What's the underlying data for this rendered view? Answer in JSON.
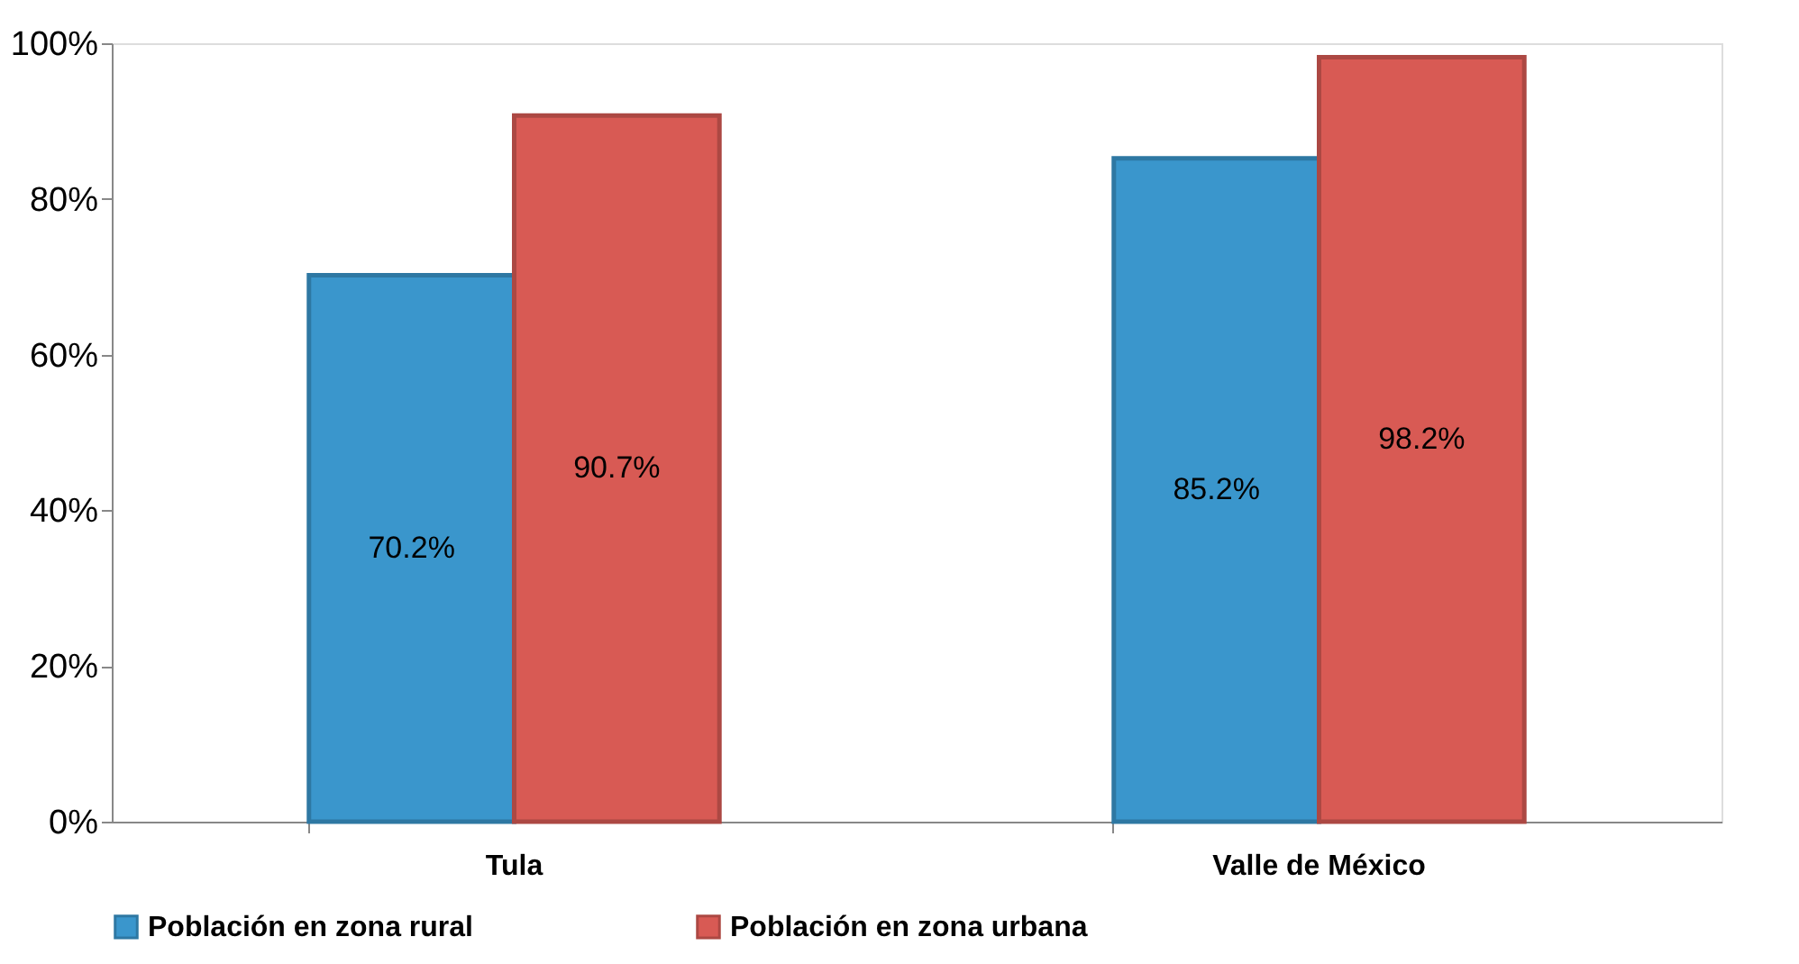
{
  "chart_data": {
    "type": "bar",
    "categories": [
      "Tula",
      "Valle de México"
    ],
    "series": [
      {
        "name": "Población en zona rural",
        "color": "#3a96cc",
        "values": [
          70.2,
          85.2
        ],
        "value_labels": [
          "70.2%",
          "85.2%"
        ]
      },
      {
        "name": "Población en zona urbana",
        "color": "#d85a54",
        "values": [
          90.7,
          98.2
        ],
        "value_labels": [
          "90.7%",
          "98.2%"
        ]
      }
    ],
    "ylim": [
      0,
      100
    ],
    "yticks": [
      {
        "value": 0,
        "label": "0%"
      },
      {
        "value": 20,
        "label": "20%"
      },
      {
        "value": 40,
        "label": "40%"
      },
      {
        "value": 60,
        "label": "60%"
      },
      {
        "value": 80,
        "label": "80%"
      },
      {
        "value": 100,
        "label": "100%"
      }
    ],
    "grid": false,
    "legend": "bottom"
  }
}
